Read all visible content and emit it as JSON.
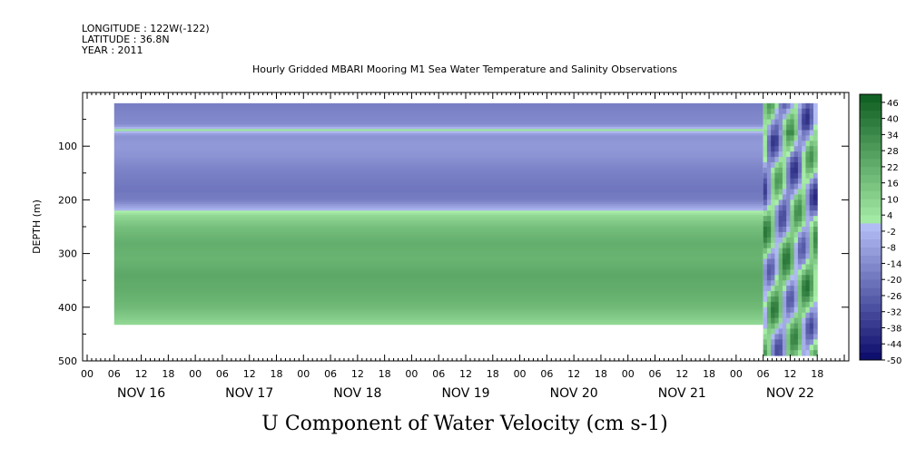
{
  "header": {
    "longitude": "LONGITUDE : 122W(-122)",
    "latitude": "LATITUDE : 36.8N",
    "year": "YEAR : 2011",
    "subtitle": "Hourly Gridded MBARI Mooring M1 Sea Water Temperature and Salinity Observations"
  },
  "chart_data": {
    "type": "heatmap",
    "title": "U Component of Water Velocity (cm s-1)",
    "ylabel": "DEPTH (m)",
    "xlabel": "",
    "ylim": [
      500,
      0
    ],
    "y_ticks": [
      100,
      200,
      300,
      400,
      500
    ],
    "y_tick_labels": [
      "100",
      "200",
      "300",
      "400",
      "500"
    ],
    "x_hour_tick_labels": [
      "00",
      "06",
      "12",
      "18",
      "00",
      "06",
      "12",
      "18",
      "00",
      "06",
      "12",
      "18",
      "00",
      "06",
      "12",
      "18",
      "00",
      "06",
      "12",
      "18",
      "00",
      "06",
      "12",
      "18",
      "00",
      "06",
      "12",
      "18"
    ],
    "x_date_labels": [
      "NOV 16",
      "NOV 17",
      "NOV 18",
      "NOV 19",
      "NOV 20",
      "NOV 21",
      "NOV 22"
    ],
    "data_start_hour": 6,
    "data_change_hour": 150,
    "data_end_hour": 162,
    "depth_profile": [
      {
        "depth": 20,
        "value": -18
      },
      {
        "depth": 40,
        "value": -16
      },
      {
        "depth": 60,
        "value": -14
      },
      {
        "depth": 70,
        "value": 4
      },
      {
        "depth": 80,
        "value": -12
      },
      {
        "depth": 100,
        "value": -10
      },
      {
        "depth": 120,
        "value": -12
      },
      {
        "depth": 140,
        "value": -16
      },
      {
        "depth": 160,
        "value": -18
      },
      {
        "depth": 180,
        "value": -20
      },
      {
        "depth": 200,
        "value": -18
      },
      {
        "depth": 215,
        "value": -6
      },
      {
        "depth": 230,
        "value": 8
      },
      {
        "depth": 250,
        "value": 16
      },
      {
        "depth": 280,
        "value": 22
      },
      {
        "depth": 310,
        "value": 20
      },
      {
        "depth": 340,
        "value": 24
      },
      {
        "depth": 370,
        "value": 22
      },
      {
        "depth": 400,
        "value": 18
      },
      {
        "depth": 420,
        "value": 12
      },
      {
        "depth": 430,
        "value": 8
      }
    ],
    "profile_max_depth": 432,
    "late_max_depth": 490,
    "colorbar": {
      "labels": [
        "46",
        "40",
        "34",
        "28",
        "22",
        "16",
        "10",
        "4",
        "-2",
        "-8",
        "-14",
        "-20",
        "-26",
        "-32",
        "-38",
        "-44",
        "-50"
      ],
      "levels": [
        -50,
        -47,
        -44,
        -41,
        -38,
        -35,
        -32,
        -29,
        -26,
        -23,
        -20,
        -17,
        -14,
        -11,
        -8,
        -5,
        -2,
        1,
        4,
        7,
        10,
        13,
        16,
        19,
        22,
        25,
        28,
        31,
        34,
        37,
        40,
        43,
        46,
        49
      ]
    }
  }
}
